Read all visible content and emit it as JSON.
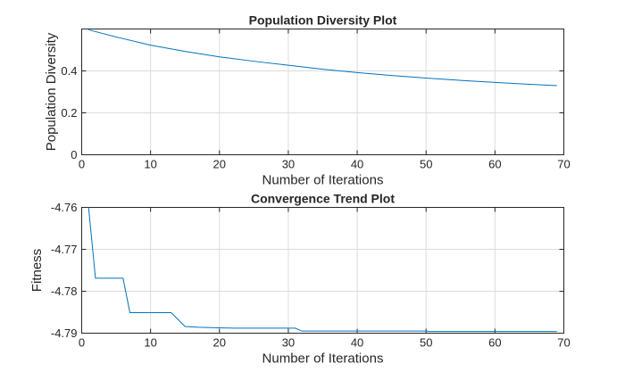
{
  "chart_data": [
    {
      "type": "line",
      "title": "Population Diversity Plot",
      "xlabel": "Number of Iterations",
      "ylabel": "Population Diversity",
      "xlim": [
        0,
        70
      ],
      "ylim": [
        0,
        0.6
      ],
      "xticks": [
        0,
        10,
        20,
        30,
        40,
        50,
        60,
        70
      ],
      "yticks": [
        0,
        0.2,
        0.4
      ],
      "ytick_labels": [
        "0",
        "0.2",
        "0.4"
      ],
      "grid": true,
      "color": "#0072BD",
      "x": [
        1,
        5,
        10,
        15,
        20,
        25,
        30,
        35,
        40,
        45,
        50,
        55,
        60,
        65,
        69
      ],
      "y": [
        0.596,
        0.562,
        0.523,
        0.493,
        0.467,
        0.446,
        0.427,
        0.408,
        0.392,
        0.378,
        0.366,
        0.355,
        0.345,
        0.336,
        0.33
      ]
    },
    {
      "type": "line",
      "title": "Convergence Trend Plot",
      "xlabel": "Number of Iterations",
      "ylabel": "Fitness",
      "xlim": [
        0,
        70
      ],
      "ylim": [
        -4.79,
        -4.76
      ],
      "xticks": [
        0,
        10,
        20,
        30,
        40,
        50,
        60,
        70
      ],
      "yticks": [
        -4.79,
        -4.78,
        -4.77,
        -4.76
      ],
      "ytick_labels": [
        "-4.79",
        "-4.78",
        "-4.77",
        "-4.76"
      ],
      "grid": true,
      "color": "#0072BD",
      "x": [
        1,
        2,
        6,
        7,
        13,
        15,
        17,
        22,
        31,
        32,
        50,
        50.5,
        69
      ],
      "y": [
        -4.76,
        -4.7769,
        -4.7769,
        -4.7851,
        -4.7851,
        -4.7884,
        -4.7886,
        -4.7888,
        -4.7888,
        -4.7895,
        -4.7895,
        -4.7896,
        -4.7896
      ]
    }
  ]
}
